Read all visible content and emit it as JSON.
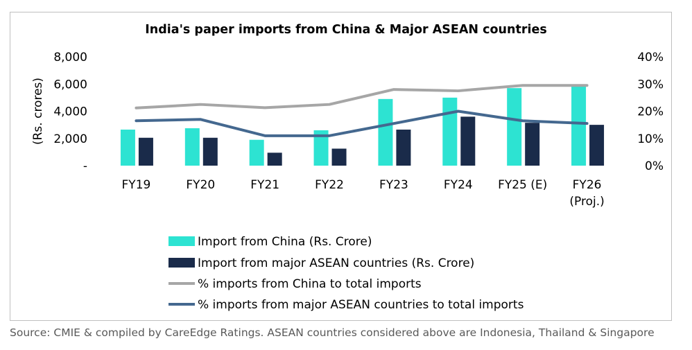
{
  "chart_data": {
    "type": "bar",
    "title": "India's paper imports from China & Major ASEAN countries",
    "ylabel": "(Rs. crores)",
    "ylim": [
      0,
      8000
    ],
    "y2lim": [
      0,
      40
    ],
    "yticks": [
      "-",
      "2,000",
      "4,000",
      "6,000",
      "8,000"
    ],
    "y2ticks": [
      "0%",
      "10%",
      "20%",
      "30%",
      "40%"
    ],
    "categories": [
      "FY19",
      "FY20",
      "FY21",
      "FY22",
      "FY23",
      "FY24",
      "FY25 (E)",
      "FY26 (Proj.)"
    ],
    "category_lines": [
      [
        "FY19"
      ],
      [
        "FY20"
      ],
      [
        "FY21"
      ],
      [
        "FY22"
      ],
      [
        "FY23"
      ],
      [
        "FY24"
      ],
      [
        "FY25 (E)"
      ],
      [
        "FY26",
        "(Proj.)"
      ]
    ],
    "series": [
      {
        "name": "Import from China (Rs. Crore)",
        "kind": "bar",
        "axis": "left",
        "color": "#2de3d2",
        "values": [
          2650,
          2750,
          1900,
          2600,
          4900,
          5000,
          5700,
          5850
        ]
      },
      {
        "name": "Import from major ASEAN countries (Rs. Crore)",
        "kind": "bar",
        "axis": "left",
        "color": "#1a2b4a",
        "values": [
          2050,
          2050,
          950,
          1250,
          2650,
          3600,
          3150,
          3000
        ]
      },
      {
        "name": "% imports from China to total imports",
        "kind": "line",
        "axis": "right",
        "color": "#a6a6a6",
        "values": [
          21.2,
          22.5,
          21.3,
          22.5,
          28.0,
          27.5,
          29.5,
          29.5
        ]
      },
      {
        "name": "% imports from major ASEAN countries to total imports",
        "kind": "line",
        "axis": "right",
        "color": "#44688f",
        "values": [
          16.5,
          17.0,
          11.0,
          11.0,
          15.5,
          20.0,
          16.5,
          15.5
        ]
      }
    ]
  },
  "source": "Source: CMIE & compiled by CareEdge Ratings. ASEAN countries considered above are Indonesia, Thailand & Singapore"
}
